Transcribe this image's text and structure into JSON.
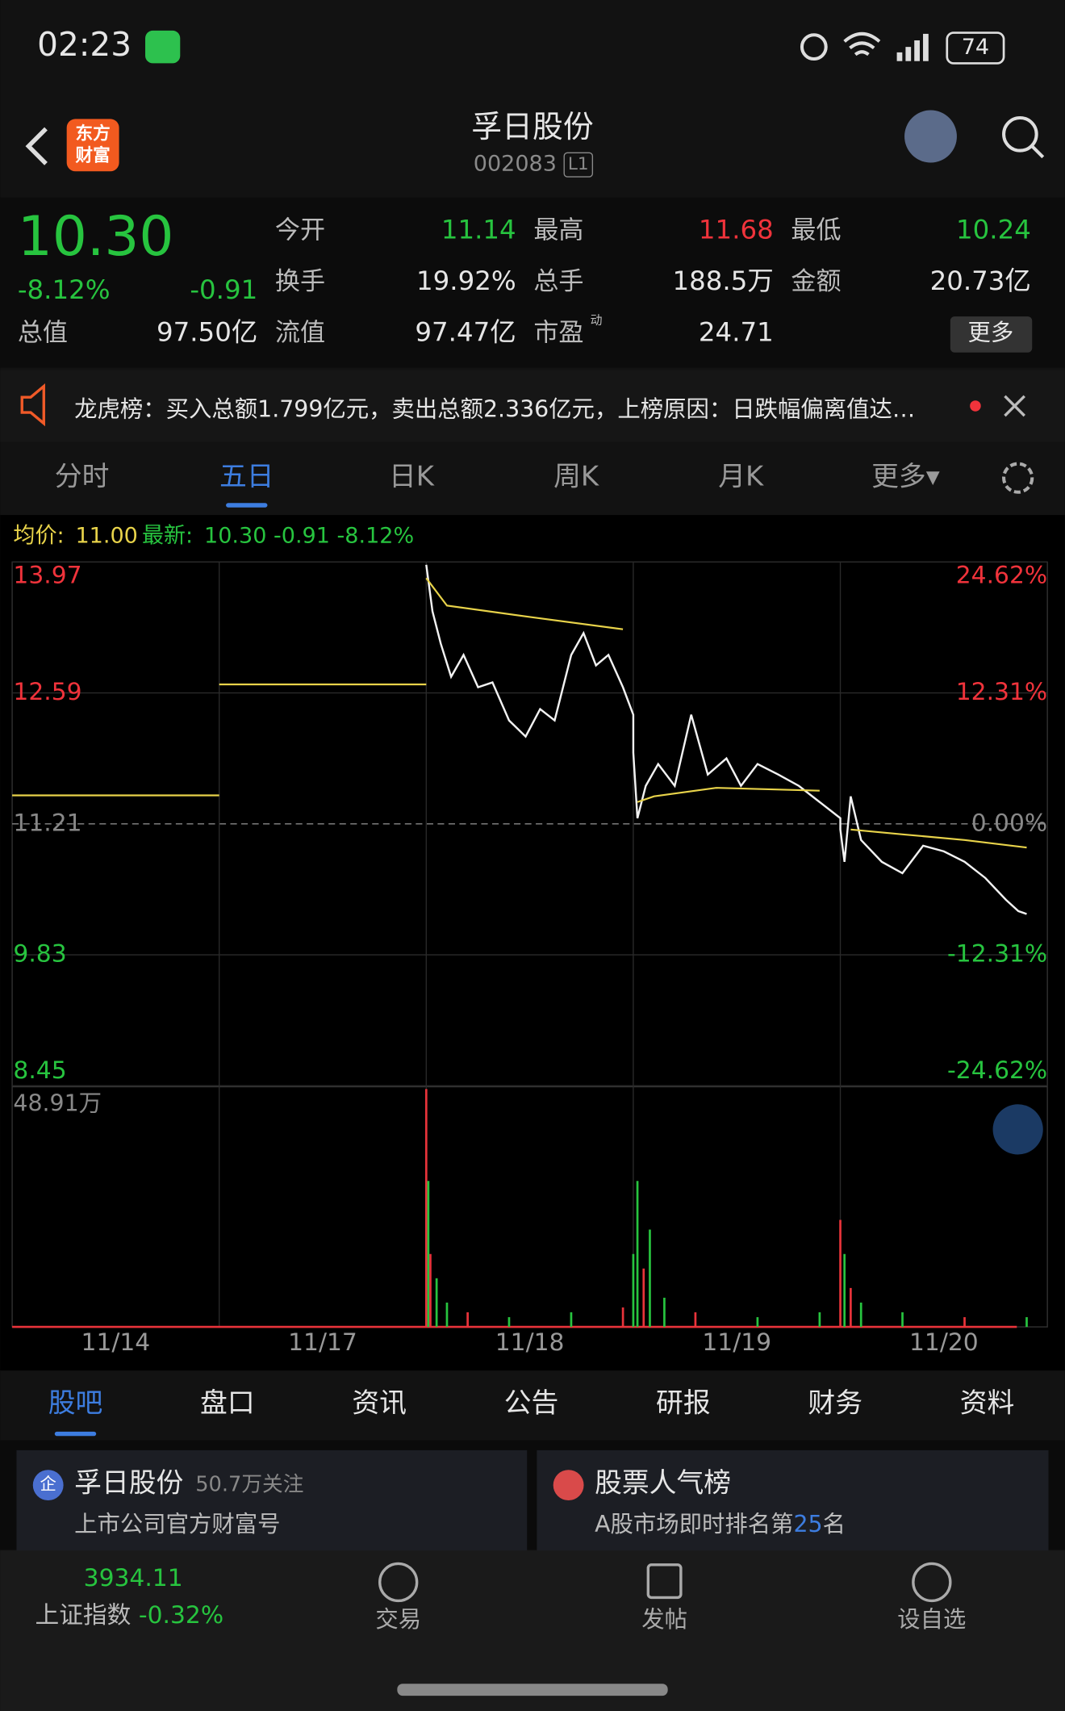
{
  "status": {
    "time": "02:23",
    "battery": "74"
  },
  "header": {
    "logo": [
      "东方",
      "财富"
    ],
    "title": "孚日股份",
    "code": "002083",
    "badge": "L1"
  },
  "quote": {
    "price": "10.30",
    "change_pct": "-8.12%",
    "change": "-0.91",
    "more": "更多",
    "fields": [
      {
        "label": "今开",
        "value": "11.14",
        "color": "#27c43f"
      },
      {
        "label": "最高",
        "value": "11.68",
        "color": "#f0333b"
      },
      {
        "label": "最低",
        "value": "10.24",
        "color": "#27c43f"
      },
      {
        "label": "换手",
        "value": "19.92%",
        "color": "#e6e6e6"
      },
      {
        "label": "总手",
        "value": "188.5万",
        "color": "#e6e6e6"
      },
      {
        "label": "金额",
        "value": "20.73亿",
        "color": "#e6e6e6"
      },
      {
        "label": "总值",
        "value": "97.50亿",
        "color": "#e6e6e6"
      },
      {
        "label": "流值",
        "value": "97.47亿",
        "color": "#e6e6e6"
      },
      {
        "label": "市盈",
        "value": "24.71",
        "color": "#e6e6e6",
        "sup": "动"
      }
    ]
  },
  "notice": "龙虎榜：买入总额1.799亿元，卖出总额2.336亿元，上榜原因：日跌幅偏离值达…",
  "tabs": {
    "items": [
      "分时",
      "五日",
      "日K",
      "周K",
      "月K",
      "更多▾"
    ],
    "active": 1
  },
  "chart_info": {
    "avg_label": "均价:",
    "avg": "11.00",
    "latest_label": "最新:",
    "latest": "10.30 -0.91 -8.12%"
  },
  "chart_data": {
    "type": "line",
    "categories": [
      "11/14",
      "11/17",
      "11/18",
      "11/19",
      "11/20"
    ],
    "xlim": [
      0,
      5
    ],
    "ylim": [
      8.45,
      13.97
    ],
    "yticks": [
      13.97,
      12.59,
      11.21,
      9.83,
      8.45
    ],
    "y2lim": [
      -24.62,
      24.62
    ],
    "y2ticks": [
      {
        "value": 24.62,
        "label": "24.62%"
      },
      {
        "value": 12.31,
        "label": "12.31%"
      },
      {
        "value": 0,
        "label": "0.00%"
      },
      {
        "value": -12.31,
        "label": "-12.31%"
      },
      {
        "value": -24.62,
        "label": "-24.62%"
      }
    ],
    "series": [
      {
        "name": "最新",
        "color": "#f2f2f2",
        "x": [
          2.0,
          2.03,
          2.07,
          2.12,
          2.18,
          2.25,
          2.32,
          2.4,
          2.48,
          2.55,
          2.62,
          2.7,
          2.76,
          2.82,
          2.88,
          2.95,
          3.0,
          3.0,
          3.02,
          3.06,
          3.12,
          3.2,
          3.28,
          3.36,
          3.45,
          3.52,
          3.6,
          3.7,
          3.8,
          3.9,
          4.0,
          4.0,
          4.02,
          4.05,
          4.1,
          4.2,
          4.3,
          4.4,
          4.5,
          4.6,
          4.7,
          4.8,
          4.86,
          4.9
        ],
        "values": [
          13.94,
          13.45,
          13.11,
          12.76,
          12.99,
          12.65,
          12.7,
          12.3,
          12.13,
          12.42,
          12.3,
          12.99,
          13.22,
          12.88,
          12.99,
          12.65,
          12.36,
          11.96,
          11.27,
          11.61,
          11.84,
          11.61,
          12.36,
          11.73,
          11.9,
          11.61,
          11.84,
          11.73,
          11.61,
          11.44,
          11.27,
          11.15,
          10.81,
          11.5,
          11.04,
          10.81,
          10.69,
          10.98,
          10.92,
          10.81,
          10.64,
          10.41,
          10.29,
          10.26
        ]
      },
      {
        "name": "均价",
        "color": "#e8d34a",
        "x": [
          0,
          1,
          null,
          1,
          2,
          null,
          2.0,
          2.1,
          2.5,
          2.95,
          null,
          3.02,
          3.1,
          3.4,
          3.9,
          null,
          4.05,
          4.3,
          4.6,
          4.9
        ],
        "values": [
          11.51,
          11.51,
          null,
          12.68,
          12.68,
          null,
          13.8,
          13.51,
          13.39,
          13.26,
          null,
          11.44,
          11.5,
          11.59,
          11.56,
          null,
          11.15,
          11.1,
          11.04,
          10.96
        ]
      }
    ],
    "volume": {
      "max_label": "48.91万",
      "vlim": [
        0,
        48.91
      ],
      "x": [
        2.0,
        2.01,
        2.02,
        2.05,
        2.1,
        2.2,
        2.4,
        2.7,
        2.95,
        3.0,
        3.02,
        3.05,
        3.08,
        3.15,
        3.3,
        3.6,
        3.9,
        4.0,
        4.02,
        4.05,
        4.1,
        4.3,
        4.6,
        4.9
      ],
      "values": [
        48.91,
        30,
        15,
        10,
        5,
        3,
        2,
        3,
        4,
        15,
        30,
        12,
        20,
        6,
        3,
        2,
        3,
        22,
        15,
        8,
        5,
        3,
        2,
        2
      ],
      "colors": [
        "#e8333a",
        "#27c43f",
        "#e8333a",
        "#27c43f",
        "#27c43f",
        "#e8333a",
        "#27c43f",
        "#27c43f",
        "#e8333a",
        "#27c43f",
        "#27c43f",
        "#e8333a",
        "#27c43f",
        "#27c43f",
        "#e8333a",
        "#27c43f",
        "#27c43f",
        "#e8333a",
        "#27c43f",
        "#e8333a",
        "#27c43f",
        "#27c43f",
        "#e8333a",
        "#27c43f"
      ]
    }
  },
  "sub_tabs": {
    "items": [
      "股吧",
      "盘口",
      "资讯",
      "公告",
      "研报",
      "财务",
      "资料"
    ],
    "active": 0
  },
  "cards": [
    {
      "icon": "企",
      "title": "孚日股份",
      "extra": "50.7万关注",
      "sub": "上市公司官方财富号"
    },
    {
      "title": "股票人气榜",
      "sub": "A股市场即时排名第",
      "rank": "25",
      "suffix": "名"
    }
  ],
  "footer": {
    "index_value": "3934.11",
    "index_name": "上证指数",
    "index_change": "-0.32%",
    "buttons": [
      "交易",
      "发帖",
      "设自选"
    ]
  }
}
